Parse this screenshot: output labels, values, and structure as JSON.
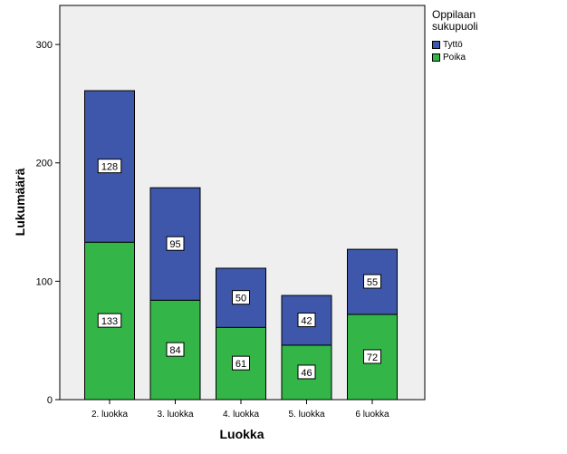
{
  "chart_data": {
    "type": "bar",
    "stacked": true,
    "xlabel": "Luokka",
    "ylabel": "Lukumäärä",
    "categories": [
      "2. luokka",
      "3. luokka",
      "4. luokka",
      "5. luokka",
      "6 luokka"
    ],
    "series": [
      {
        "name": "Poika",
        "color": "#33b547",
        "values": [
          133,
          84,
          61,
          46,
          72
        ]
      },
      {
        "name": "Tyttö",
        "color": "#3e57ab",
        "values": [
          128,
          95,
          50,
          42,
          55
        ]
      }
    ],
    "ylim": [
      0,
      333
    ],
    "yticks": [
      0,
      100,
      200,
      300
    ],
    "grid": false,
    "legend": {
      "title": "Oppilaan sukupuoli",
      "placement": "right",
      "order": [
        "Tyttö",
        "Poika"
      ]
    },
    "plot_background": "#efefef"
  }
}
